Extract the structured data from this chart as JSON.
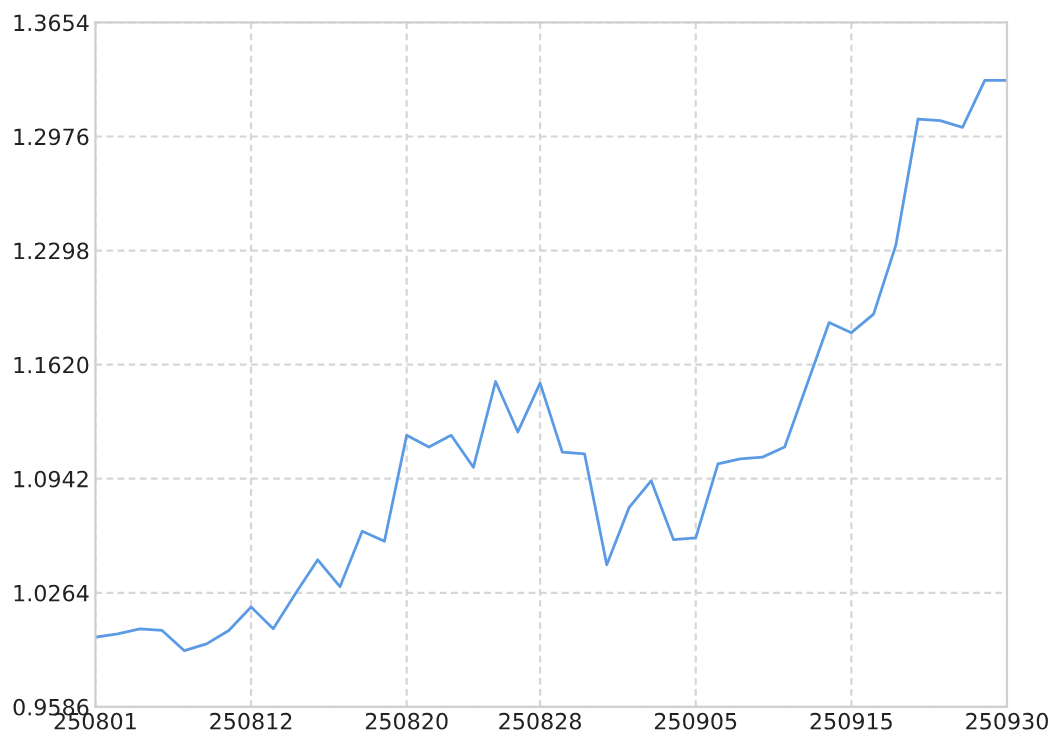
{
  "chart_data": {
    "type": "line",
    "categories": [
      "250801",
      null,
      null,
      null,
      null,
      null,
      null,
      "250812",
      null,
      null,
      null,
      null,
      null,
      null,
      "250820",
      null,
      null,
      null,
      null,
      null,
      "250828",
      null,
      null,
      null,
      null,
      null,
      null,
      "250905",
      null,
      null,
      null,
      null,
      null,
      null,
      "250915",
      null,
      null,
      null,
      null,
      null,
      null,
      "250930"
    ],
    "series": [
      {
        "color": "#5b9be6",
        "values": [
          1.0,
          1.002,
          1.005,
          1.004,
          0.992,
          0.996,
          1.004,
          1.018,
          1.005,
          1.026,
          1.046,
          1.03,
          1.063,
          1.057,
          1.12,
          1.113,
          1.12,
          1.101,
          1.152,
          1.122,
          1.151,
          1.11,
          1.109,
          1.043,
          1.077,
          1.093,
          1.058,
          1.059,
          1.103,
          1.106,
          1.107,
          1.113,
          1.15,
          1.187,
          1.181,
          1.192,
          1.233,
          1.308,
          1.307,
          1.303,
          1.331,
          1.331
        ]
      }
    ],
    "ylim": [
      0.9586,
      1.3654
    ],
    "yticks": [
      {
        "value": 0.9586,
        "label": "0.9586"
      },
      {
        "value": 1.0264,
        "label": "1.0264"
      },
      {
        "value": 1.0942,
        "label": "1.0942"
      },
      {
        "value": 1.162,
        "label": "1.1620"
      },
      {
        "value": 1.2298,
        "label": "1.2298"
      },
      {
        "value": 1.2976,
        "label": "1.2976"
      },
      {
        "value": 1.3654,
        "label": "1.3654"
      }
    ],
    "grid": true,
    "marker": "none",
    "line_style": "solid"
  }
}
